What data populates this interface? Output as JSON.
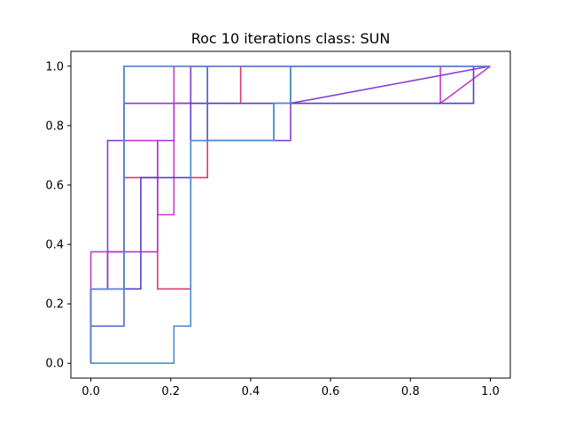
{
  "chart_data": {
    "type": "line",
    "title": "Roc 10 iterations class: SUN",
    "xlabel": "",
    "ylabel": "",
    "xlim": [
      -0.05,
      1.05
    ],
    "ylim": [
      -0.05,
      1.05
    ],
    "grid": false,
    "legend": "none",
    "x_ticks": [
      "0.0",
      "0.2",
      "0.4",
      "0.6",
      "0.8",
      "1.0"
    ],
    "y_ticks": [
      "0.0",
      "0.2",
      "0.4",
      "0.6",
      "0.8",
      "1.0"
    ],
    "series": [
      {
        "color": "#dc3a6e",
        "x": [
          0,
          0,
          0.083,
          0.083,
          0.167,
          0.167,
          0.25,
          0.25,
          0.292,
          0.292,
          0.375,
          0.375,
          1.0
        ],
        "y": [
          0,
          0.25,
          0.25,
          0.625,
          0.625,
          0.25,
          0.25,
          0.625,
          0.625,
          0.875,
          0.875,
          1.0,
          1.0
        ]
      },
      {
        "color": "#c43cc2",
        "x": [
          0,
          0,
          0.083,
          0.083,
          0.167,
          0.167,
          0.208,
          0.208,
          0.208,
          0.25,
          0.25,
          0.875,
          0.875,
          1.0
        ],
        "y": [
          0,
          0.375,
          0.375,
          0.75,
          0.75,
          0.5,
          0.5,
          1.0,
          0.875,
          0.875,
          1.0,
          1.0,
          0.875,
          1.0
        ]
      },
      {
        "color": "#b03ad0",
        "x": [
          0,
          0,
          0.042,
          0.042,
          0.125,
          0.125,
          0.167,
          0.167,
          0.208,
          0.208,
          0.292,
          0.292,
          1.0
        ],
        "y": [
          0,
          0.25,
          0.25,
          0.375,
          0.375,
          0.375,
          0.375,
          0.75,
          0.75,
          0.875,
          0.875,
          1.0,
          1.0
        ]
      },
      {
        "color": "#8b3dd4",
        "x": [
          0,
          0,
          0.042,
          0.042,
          0.083,
          0.083,
          0.25,
          0.25,
          0.292,
          0.292,
          0.5,
          0.5,
          1.0
        ],
        "y": [
          0,
          0.25,
          0.25,
          0.75,
          0.75,
          0.875,
          0.875,
          1.0,
          1.0,
          0.75,
          0.75,
          0.875,
          1.0
        ]
      },
      {
        "color": "#5a3ccc",
        "x": [
          0,
          0,
          0.083,
          0.083,
          0.125,
          0.125,
          0.25,
          0.25,
          0.958,
          0.958,
          1.0
        ],
        "y": [
          0,
          0.25,
          0.25,
          0.25,
          0.25,
          0.625,
          0.625,
          0.875,
          0.875,
          1.0,
          1.0
        ]
      },
      {
        "color": "#4a6ccc",
        "x": [
          0,
          0,
          0.083,
          0.083,
          0.292,
          0.292,
          0.458,
          0.458,
          0.5,
          0.5,
          1.0
        ],
        "y": [
          0,
          0.125,
          0.125,
          1.0,
          1.0,
          0.75,
          0.75,
          0.875,
          0.875,
          1.0,
          1.0
        ]
      },
      {
        "color": "#4a8cd0",
        "x": [
          0,
          0.208,
          0.208,
          0.25,
          0.25,
          0.25,
          0.292,
          0.292,
          0.458,
          0.458,
          0.5,
          0.5,
          1.0
        ],
        "y": [
          0,
          0,
          0.125,
          0.125,
          0.625,
          0.75,
          0.75,
          0.75,
          0.75,
          0.875,
          0.875,
          1.0,
          1.0
        ]
      },
      {
        "color": "#5a86d6",
        "x": [
          0,
          0,
          0.083,
          0.083,
          1.0
        ],
        "y": [
          0,
          0.25,
          0.25,
          1.0,
          1.0
        ]
      }
    ]
  }
}
